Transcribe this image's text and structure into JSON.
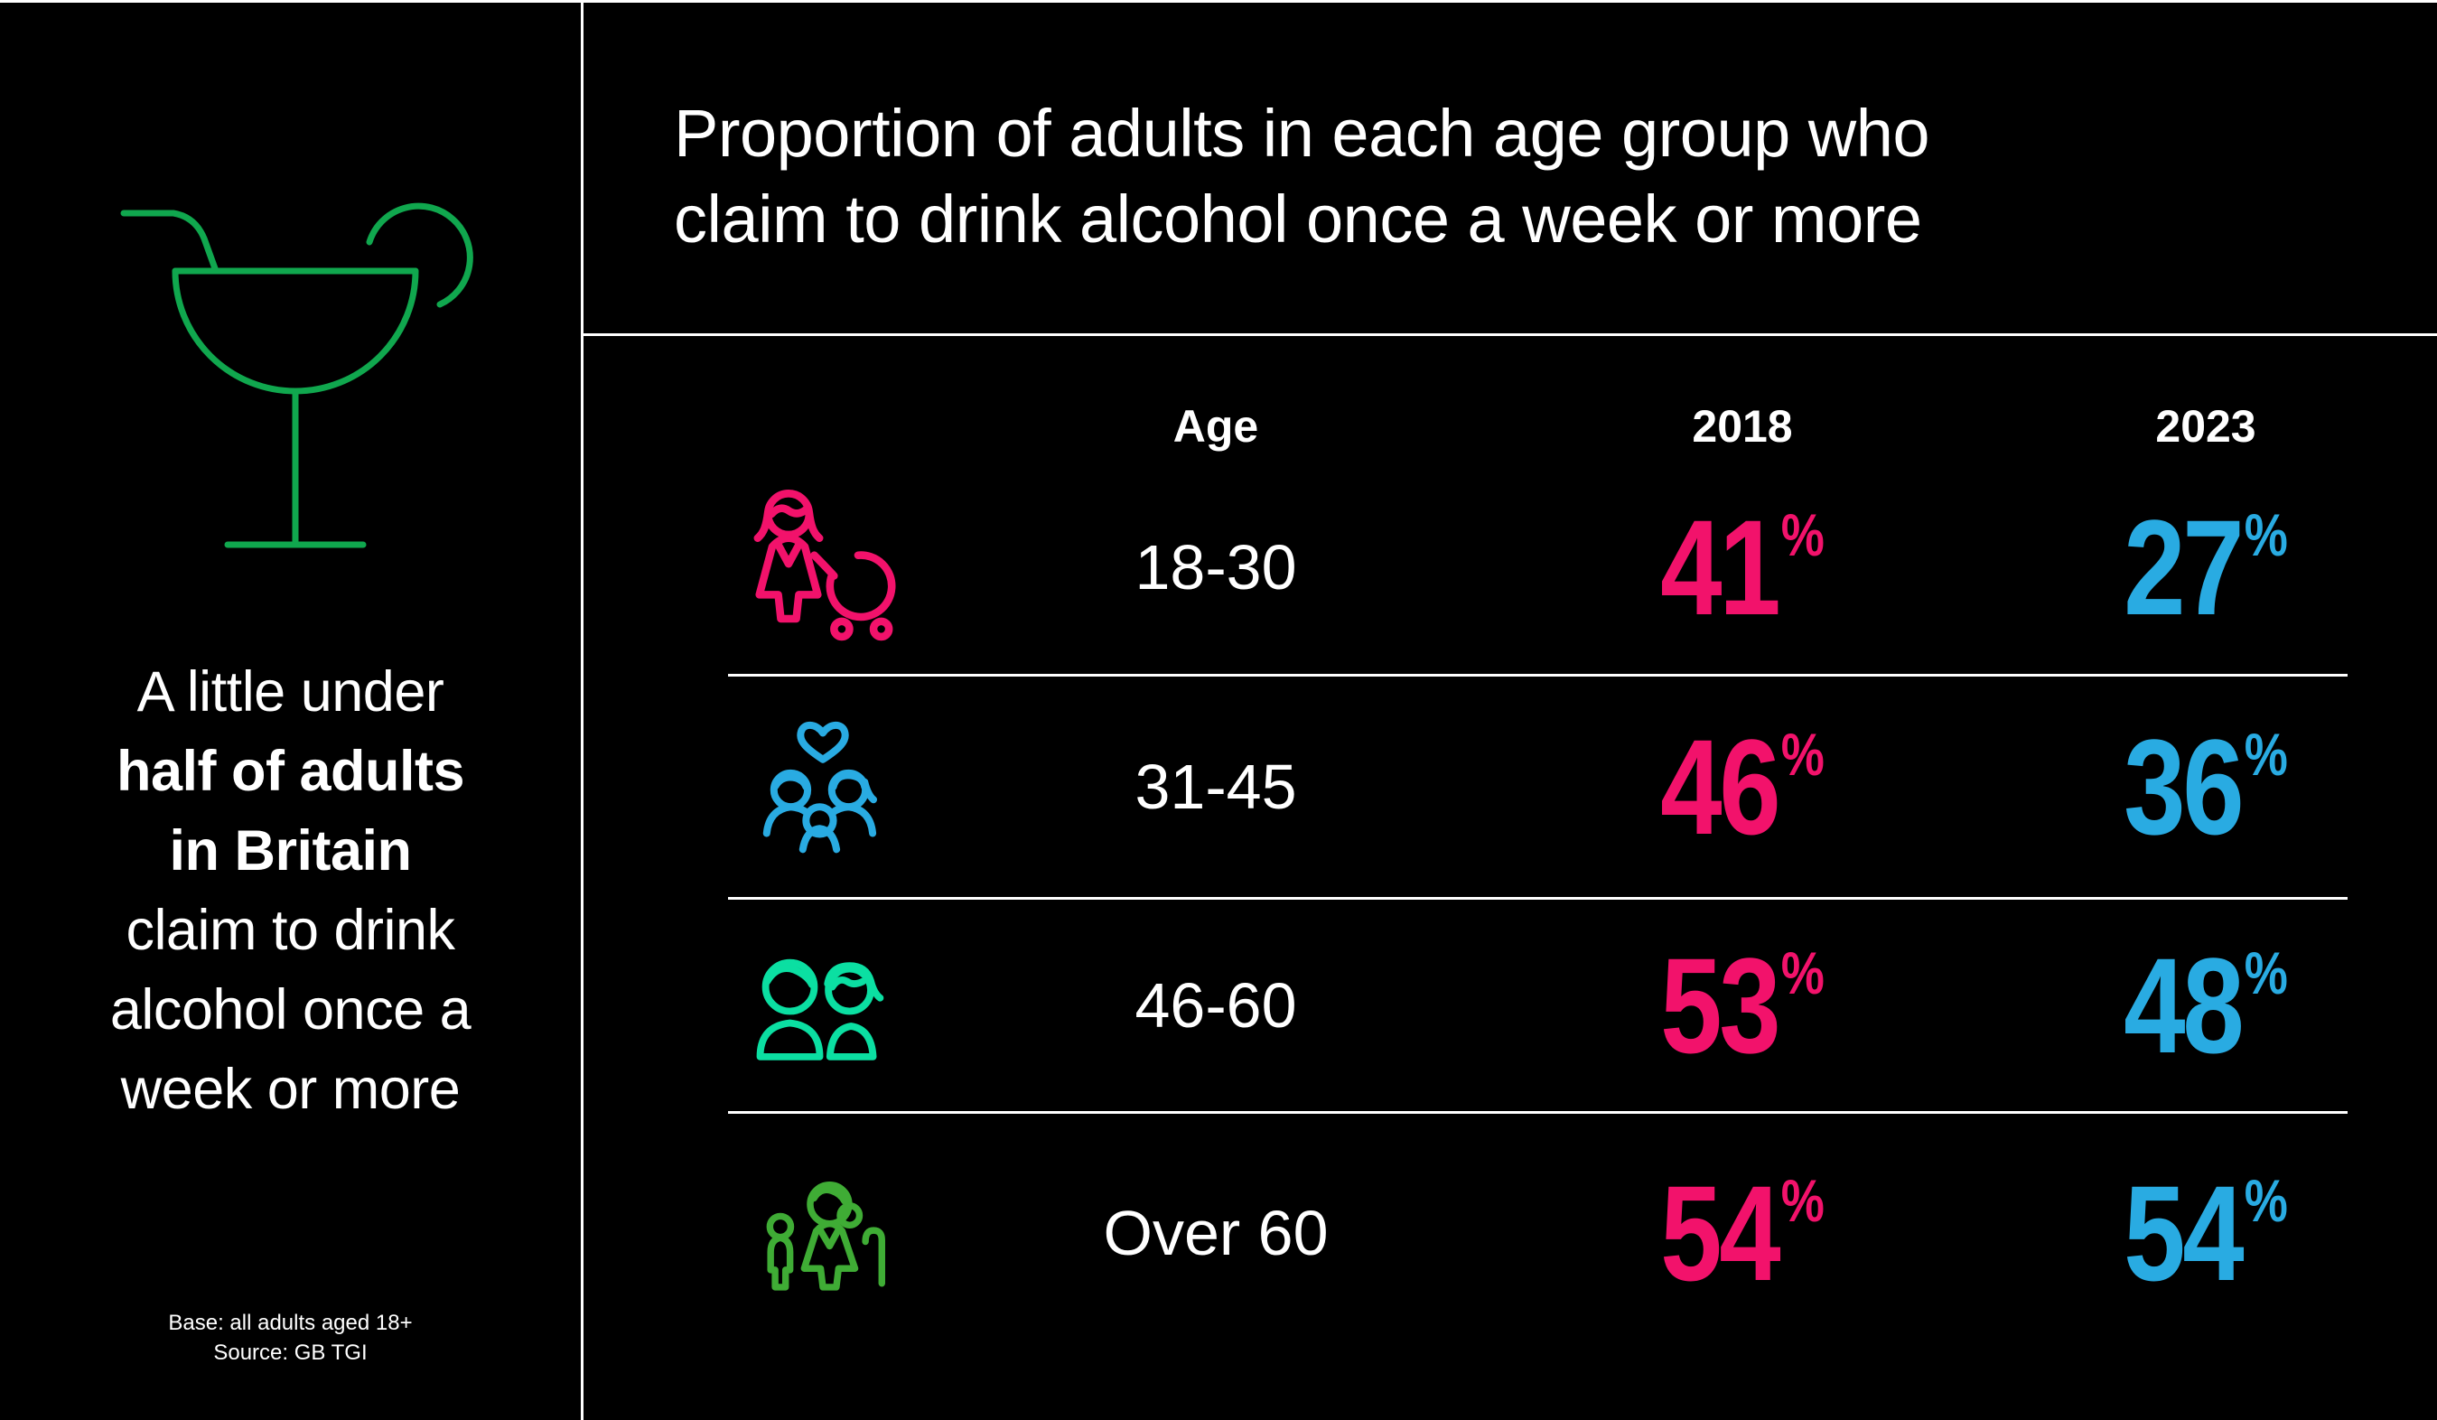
{
  "infographic": {
    "background": "#000000",
    "divider_color": "#FFFFFF"
  },
  "left_panel": {
    "icon": "cocktail-glass-icon",
    "icon_color": "#10A74E",
    "statement_lines": [
      {
        "text": "A little under",
        "bold": false
      },
      {
        "text": "half of adults",
        "bold": true
      },
      {
        "text": "in Britain",
        "bold": true
      },
      {
        "text": "claim to drink",
        "bold": false
      },
      {
        "text": "alcohol once a",
        "bold": false
      },
      {
        "text": "week or more",
        "bold": false
      }
    ],
    "footnote_lines": [
      "Base: all adults aged 18+",
      "Source: GB TGI"
    ]
  },
  "main": {
    "title_lines": [
      "Proportion of adults in each age group who",
      "claim to drink alcohol once a week or more"
    ],
    "columns": {
      "age": "Age",
      "y2018": "2018",
      "y2023": "2023"
    },
    "unit": "%",
    "value_colors": {
      "y2018": "#F2126B",
      "y2023": "#29ABE2"
    },
    "rows": [
      {
        "icon": "mother-with-pram-icon",
        "icon_color": "#F2126B",
        "age": "18-30",
        "v2018": "41",
        "v2023": "27"
      },
      {
        "icon": "family-with-heart-icon",
        "icon_color": "#29ABE2",
        "age": "31-45",
        "v2018": "46",
        "v2023": "36"
      },
      {
        "icon": "couple-icon",
        "icon_color": "#0BDFA2",
        "age": "46-60",
        "v2018": "53",
        "v2023": "48"
      },
      {
        "icon": "grandparent-with-child-icon",
        "icon_color": "#3FAC35",
        "age": "Over 60",
        "v2018": "54",
        "v2023": "54"
      }
    ]
  },
  "chart_data": {
    "type": "table",
    "title": "Proportion of adults in each age group who claim to drink alcohol once a week or more",
    "columns": [
      "Age",
      "2018",
      "2023"
    ],
    "categories": [
      "18-30",
      "31-45",
      "46-60",
      "Over 60"
    ],
    "series": [
      {
        "name": "2018",
        "values": [
          41,
          46,
          53,
          54
        ],
        "color": "#F2126B"
      },
      {
        "name": "2023",
        "values": [
          27,
          36,
          48,
          54
        ],
        "color": "#29ABE2"
      }
    ],
    "unit": "%",
    "annotations": [
      "A little under half of adults in Britain claim to drink alcohol once a week or more",
      "Base: all adults aged 18+",
      "Source: GB TGI"
    ]
  }
}
